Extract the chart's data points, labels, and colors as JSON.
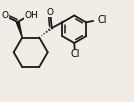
{
  "background_color": "#f2ede4",
  "bond_color": "#1a1a1a",
  "atom_bg_color": "#f2ede4",
  "bond_lw": 1.3,
  "fig_width": 1.34,
  "fig_height": 1.02,
  "dpi": 100,
  "font_size": 6.5,
  "xlim": [
    -1.5,
    3.8
  ],
  "ylim": [
    -1.8,
    1.6
  ]
}
